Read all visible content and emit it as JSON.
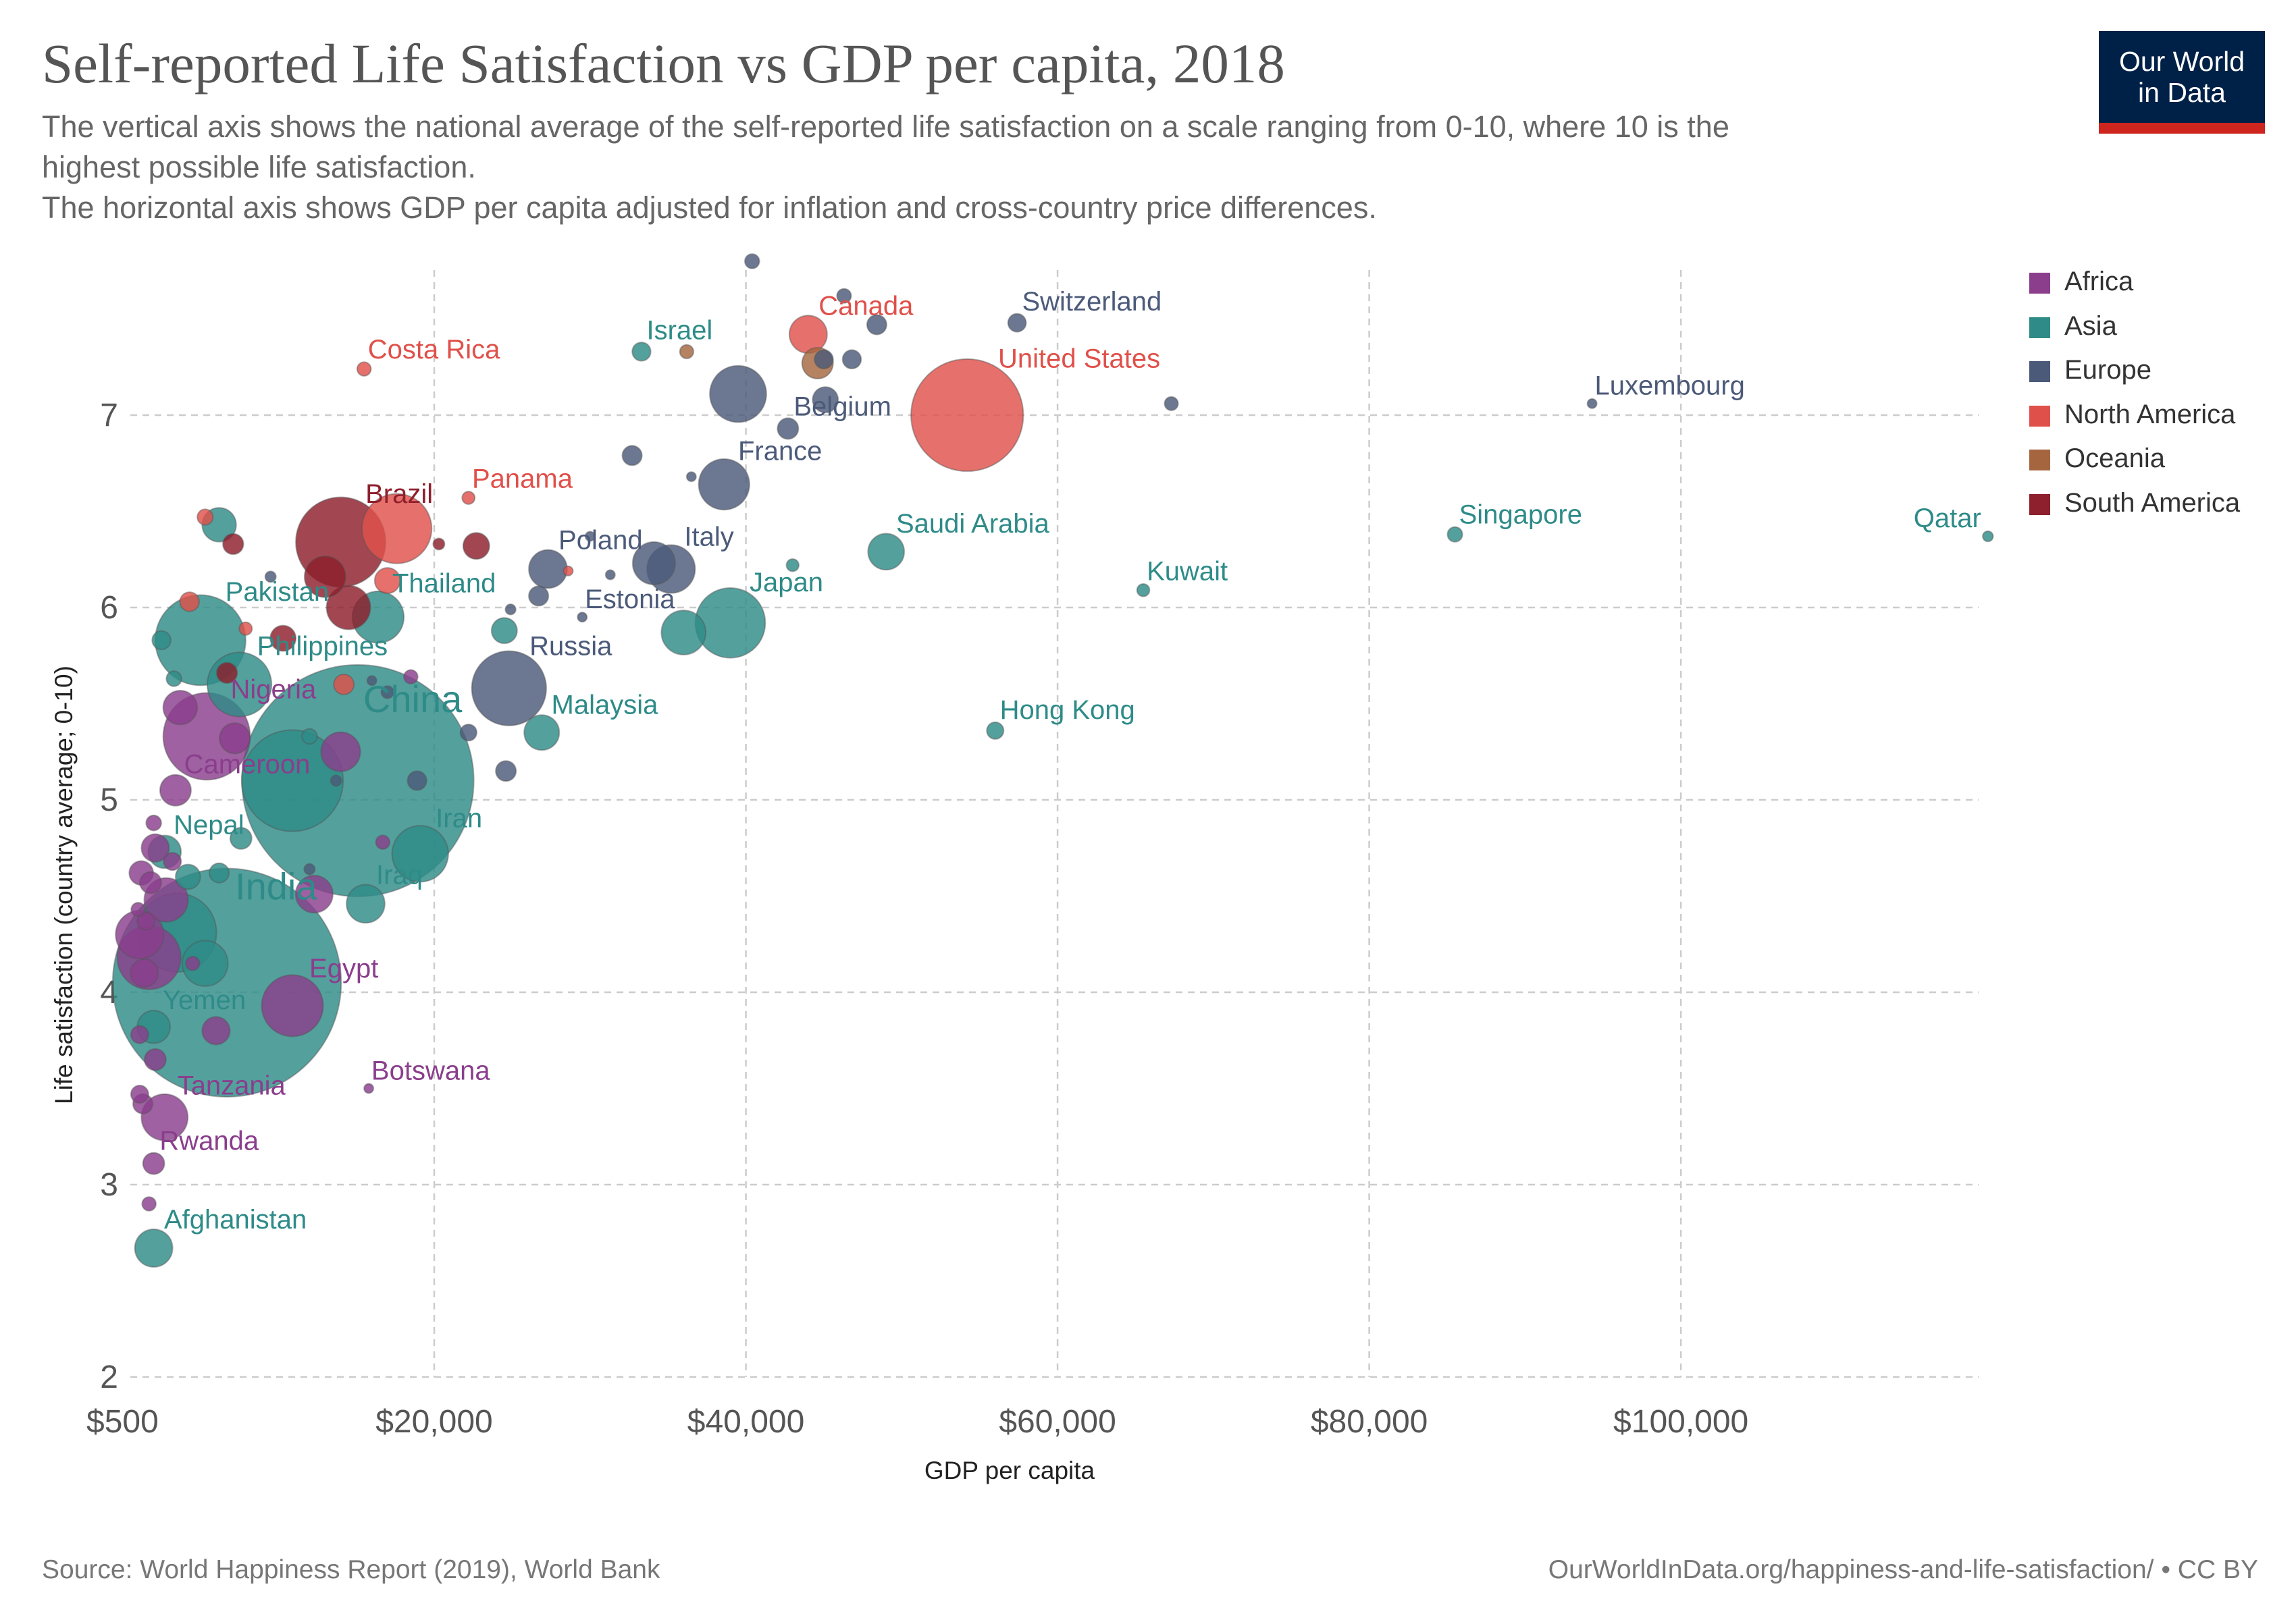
{
  "header": {
    "title": "Self-reported Life Satisfaction vs GDP per capita, 2018",
    "subtitle_lines": [
      "The vertical axis shows the national average of the self-reported life satisfaction on a scale ranging from 0-10, where 10 is the",
      "highest possible life satisfaction.",
      "The horizontal axis shows GDP per capita adjusted for inflation and cross-country price differences."
    ]
  },
  "logo": {
    "line1": "Our World",
    "line2": "in Data"
  },
  "footer": {
    "source": "Source: World Happiness Report (2019), World Bank",
    "credit": "OurWorldInData.org/happiness-and-life-satisfaction/ • CC BY"
  },
  "chart_data": {
    "type": "scatter",
    "title": "Self-reported Life Satisfaction vs GDP per capita, 2018",
    "xlabel": "GDP per capita",
    "ylabel": "Life satisfaction (country average; 0-10)",
    "xlim": [
      500,
      120000
    ],
    "ylim": [
      2,
      7.8
    ],
    "x_ticks": [
      500,
      20000,
      40000,
      60000,
      80000,
      100000
    ],
    "x_tick_labels": [
      "$500",
      "$20,000",
      "$40,000",
      "$60,000",
      "$80,000",
      "$100,000"
    ],
    "y_ticks": [
      2,
      3,
      4,
      5,
      6,
      7
    ],
    "y_tick_labels": [
      "2",
      "3",
      "4",
      "5",
      "6",
      "7"
    ],
    "grid": true,
    "legend_position": "right",
    "legend": [
      {
        "name": "Africa",
        "color": "#8a3e8c"
      },
      {
        "name": "Asia",
        "color": "#2e8b88"
      },
      {
        "name": "Europe",
        "color": "#4c5a7a"
      },
      {
        "name": "North America",
        "color": "#e0504a"
      },
      {
        "name": "Oceania",
        "color": "#a5663f"
      },
      {
        "name": "South America",
        "color": "#8e1f2c"
      }
    ],
    "series": [
      {
        "name": "Africa",
        "color": "#8a3e8c",
        "points": [
          {
            "label": "Nigeria",
            "x": 5400,
            "y": 5.33,
            "pop": 196
          },
          {
            "label": "Cameroon",
            "x": 3400,
            "y": 5.05,
            "pop": 25
          },
          {
            "label": "Egypt",
            "x": 10900,
            "y": 3.93,
            "pop": 98
          },
          {
            "label": "Botswana",
            "x": 15800,
            "y": 3.5,
            "pop": 2.3
          },
          {
            "label": "Tanzania",
            "x": 2700,
            "y": 3.35,
            "pop": 56
          },
          {
            "label": "Rwanda",
            "x": 2000,
            "y": 3.11,
            "pop": 12
          },
          {
            "label": "",
            "x": 1100,
            "y": 4.3,
            "pop": 60
          },
          {
            "label": "",
            "x": 1700,
            "y": 4.18,
            "pop": 105
          },
          {
            "label": "",
            "x": 1400,
            "y": 4.1,
            "pop": 20
          },
          {
            "label": "",
            "x": 1200,
            "y": 4.62,
            "pop": 15
          },
          {
            "label": "",
            "x": 1800,
            "y": 4.57,
            "pop": 12
          },
          {
            "label": "",
            "x": 2100,
            "y": 4.75,
            "pop": 20
          },
          {
            "label": "",
            "x": 2800,
            "y": 4.48,
            "pop": 50
          },
          {
            "label": "",
            "x": 1000,
            "y": 4.43,
            "pop": 5
          },
          {
            "label": "",
            "x": 1500,
            "y": 4.37,
            "pop": 8
          },
          {
            "label": "",
            "x": 2000,
            "y": 4.88,
            "pop": 6
          },
          {
            "label": "",
            "x": 3200,
            "y": 4.68,
            "pop": 8
          },
          {
            "label": "",
            "x": 1100,
            "y": 3.78,
            "pop": 8
          },
          {
            "label": "",
            "x": 2100,
            "y": 3.65,
            "pop": 12
          },
          {
            "label": "",
            "x": 1100,
            "y": 3.47,
            "pop": 8
          },
          {
            "label": "",
            "x": 1300,
            "y": 3.42,
            "pop": 10
          },
          {
            "label": "",
            "x": 1700,
            "y": 2.9,
            "pop": 5
          },
          {
            "label": "",
            "x": 3700,
            "y": 5.48,
            "pop": 30
          },
          {
            "label": "",
            "x": 7200,
            "y": 5.32,
            "pop": 24
          },
          {
            "label": "",
            "x": 6000,
            "y": 3.8,
            "pop": 20
          },
          {
            "label": "",
            "x": 12300,
            "y": 4.51,
            "pop": 36
          },
          {
            "label": "",
            "x": 14000,
            "y": 5.25,
            "pop": 40
          },
          {
            "label": "",
            "x": 16700,
            "y": 4.78,
            "pop": 5
          },
          {
            "label": "",
            "x": 18500,
            "y": 5.64,
            "pop": 5
          },
          {
            "label": "",
            "x": 4500,
            "y": 4.15,
            "pop": 5
          }
        ]
      },
      {
        "name": "Asia",
        "color": "#2e8b88",
        "points": [
          {
            "label": "China",
            "x": 15100,
            "y": 5.1,
            "pop": 1393
          },
          {
            "label": "India",
            "x": 6700,
            "y": 4.05,
            "pop": 1353
          },
          {
            "label": "Pakistan",
            "x": 5000,
            "y": 5.83,
            "pop": 212
          },
          {
            "label": "Philippines",
            "x": 7500,
            "y": 5.6,
            "pop": 107
          },
          {
            "label": "Thailand",
            "x": 16400,
            "y": 5.95,
            "pop": 69
          },
          {
            "label": "Malaysia",
            "x": 26900,
            "y": 5.35,
            "pop": 32
          },
          {
            "label": "Iran",
            "x": 19100,
            "y": 4.72,
            "pop": 82
          },
          {
            "label": "Iraq",
            "x": 15600,
            "y": 4.46,
            "pop": 38
          },
          {
            "label": "Nepal",
            "x": 2700,
            "y": 4.73,
            "pop": 28
          },
          {
            "label": "Yemen",
            "x": 2000,
            "y": 3.82,
            "pop": 28
          },
          {
            "label": "Afghanistan",
            "x": 2000,
            "y": 2.67,
            "pop": 37
          },
          {
            "label": "Israel",
            "x": 33300,
            "y": 7.33,
            "pop": 8.9
          },
          {
            "label": "Japan",
            "x": 39000,
            "y": 5.92,
            "pop": 127
          },
          {
            "label": "Saudi Arabia",
            "x": 49000,
            "y": 6.29,
            "pop": 34
          },
          {
            "label": "Kuwait",
            "x": 65500,
            "y": 6.09,
            "pop": 4.1
          },
          {
            "label": "Singapore",
            "x": 85500,
            "y": 6.38,
            "pop": 5.8
          },
          {
            "label": "Qatar",
            "x": 119700,
            "y": 6.37,
            "pop": 2.8
          },
          {
            "label": "Hong Kong",
            "x": 56000,
            "y": 5.36,
            "pop": 7.4
          },
          {
            "label": "",
            "x": 3500,
            "y": 4.31,
            "pop": 161
          },
          {
            "label": "",
            "x": 10900,
            "y": 5.1,
            "pop": 267
          },
          {
            "label": "",
            "x": 6200,
            "y": 6.43,
            "pop": 30
          },
          {
            "label": "",
            "x": 7600,
            "y": 4.8,
            "pop": 12
          },
          {
            "label": "",
            "x": 6200,
            "y": 4.62,
            "pop": 10
          },
          {
            "label": "",
            "x": 4200,
            "y": 4.6,
            "pop": 16
          },
          {
            "label": "",
            "x": 5300,
            "y": 4.15,
            "pop": 54
          },
          {
            "label": "",
            "x": 2500,
            "y": 5.83,
            "pop": 9
          },
          {
            "label": "",
            "x": 3300,
            "y": 5.63,
            "pop": 6
          },
          {
            "label": "",
            "x": 36000,
            "y": 5.87,
            "pop": 51
          },
          {
            "label": "",
            "x": 43000,
            "y": 6.22,
            "pop": 4
          },
          {
            "label": "",
            "x": 24500,
            "y": 5.88,
            "pop": 17
          },
          {
            "label": "",
            "x": 12000,
            "y": 5.33,
            "pop": 6
          }
        ]
      },
      {
        "name": "Europe",
        "color": "#4c5a7a",
        "points": [
          {
            "label": "Switzerland",
            "x": 57400,
            "y": 7.48,
            "pop": 8.5
          },
          {
            "label": "Luxembourg",
            "x": 94300,
            "y": 7.06,
            "pop": 0.6
          },
          {
            "label": "Belgium",
            "x": 42700,
            "y": 6.93,
            "pop": 11.4
          },
          {
            "label": "France",
            "x": 38600,
            "y": 6.64,
            "pop": 67
          },
          {
            "label": "Poland",
            "x": 27300,
            "y": 6.2,
            "pop": 38
          },
          {
            "label": "Italy",
            "x": 35200,
            "y": 6.2,
            "pop": 60
          },
          {
            "label": "Estonia",
            "x": 29500,
            "y": 5.95,
            "pop": 1.3
          },
          {
            "label": "Russia",
            "x": 24800,
            "y": 5.58,
            "pop": 144
          },
          {
            "label": "",
            "x": 40400,
            "y": 7.8,
            "pop": 5.5
          },
          {
            "label": "",
            "x": 46300,
            "y": 7.62,
            "pop": 5.3
          },
          {
            "label": "",
            "x": 48400,
            "y": 7.47,
            "pop": 10
          },
          {
            "label": "",
            "x": 45000,
            "y": 7.29,
            "pop": 9
          },
          {
            "label": "",
            "x": 46800,
            "y": 7.29,
            "pop": 9
          },
          {
            "label": "",
            "x": 39500,
            "y": 7.11,
            "pop": 83
          },
          {
            "label": "",
            "x": 45100,
            "y": 7.08,
            "pop": 17
          },
          {
            "label": "",
            "x": 67300,
            "y": 7.06,
            "pop": 4.8
          },
          {
            "label": "",
            "x": 32700,
            "y": 6.79,
            "pop": 10
          },
          {
            "label": "",
            "x": 36500,
            "y": 6.68,
            "pop": 0.4
          },
          {
            "label": "",
            "x": 34100,
            "y": 6.23,
            "pop": 47
          },
          {
            "label": "",
            "x": 26700,
            "y": 6.06,
            "pop": 10
          },
          {
            "label": "",
            "x": 31300,
            "y": 6.17,
            "pop": 2.1
          },
          {
            "label": "",
            "x": 24900,
            "y": 5.99,
            "pop": 2.8
          },
          {
            "label": "",
            "x": 22200,
            "y": 5.35,
            "pop": 7
          },
          {
            "label": "",
            "x": 24600,
            "y": 5.15,
            "pop": 10.7
          },
          {
            "label": "",
            "x": 18900,
            "y": 5.1,
            "pop": 9.5
          },
          {
            "label": "",
            "x": 16000,
            "y": 5.62,
            "pop": 2.1
          },
          {
            "label": "",
            "x": 17000,
            "y": 5.56,
            "pop": 4
          },
          {
            "label": "",
            "x": 9500,
            "y": 6.16,
            "pop": 3
          },
          {
            "label": "",
            "x": 13700,
            "y": 5.1,
            "pop": 3
          },
          {
            "label": "",
            "x": 12000,
            "y": 4.64,
            "pop": 3
          },
          {
            "label": "",
            "x": 30000,
            "y": 6.37,
            "pop": 1
          }
        ]
      },
      {
        "name": "North America",
        "color": "#e0504a",
        "points": [
          {
            "label": "United States",
            "x": 54200,
            "y": 7.0,
            "pop": 327
          },
          {
            "label": "Canada",
            "x": 44000,
            "y": 7.42,
            "pop": 37
          },
          {
            "label": "Costa Rica",
            "x": 15500,
            "y": 7.24,
            "pop": 5
          },
          {
            "label": "Panama",
            "x": 22200,
            "y": 6.57,
            "pop": 4.2
          },
          {
            "label": "",
            "x": 17600,
            "y": 6.41,
            "pop": 126
          },
          {
            "label": "",
            "x": 5300,
            "y": 6.47,
            "pop": 6.4
          },
          {
            "label": "",
            "x": 4300,
            "y": 6.03,
            "pop": 9.6
          },
          {
            "label": "",
            "x": 7900,
            "y": 5.89,
            "pop": 4.3
          },
          {
            "label": "",
            "x": 14200,
            "y": 5.6,
            "pop": 10.6
          },
          {
            "label": "",
            "x": 28600,
            "y": 6.19,
            "pop": 1.4
          },
          {
            "label": "",
            "x": 17000,
            "y": 6.14,
            "pop": 17
          }
        ]
      },
      {
        "name": "Oceania",
        "color": "#a5663f",
        "points": [
          {
            "label": "",
            "x": 44600,
            "y": 7.27,
            "pop": 25
          },
          {
            "label": "",
            "x": 36200,
            "y": 7.33,
            "pop": 4.9
          }
        ]
      },
      {
        "name": "South America",
        "color": "#8e1f2c",
        "points": [
          {
            "label": "Brazil",
            "x": 14000,
            "y": 6.34,
            "pop": 209
          },
          {
            "label": "",
            "x": 13000,
            "y": 6.16,
            "pop": 44
          },
          {
            "label": "",
            "x": 7100,
            "y": 6.33,
            "pop": 11
          },
          {
            "label": "",
            "x": 6700,
            "y": 5.66,
            "pop": 11
          },
          {
            "label": "",
            "x": 10300,
            "y": 5.84,
            "pop": 17
          },
          {
            "label": "",
            "x": 20300,
            "y": 6.33,
            "pop": 3.4
          },
          {
            "label": "",
            "x": 22700,
            "y": 6.32,
            "pop": 18
          },
          {
            "label": "",
            "x": 14500,
            "y": 6.0,
            "pop": 50
          }
        ]
      }
    ]
  }
}
